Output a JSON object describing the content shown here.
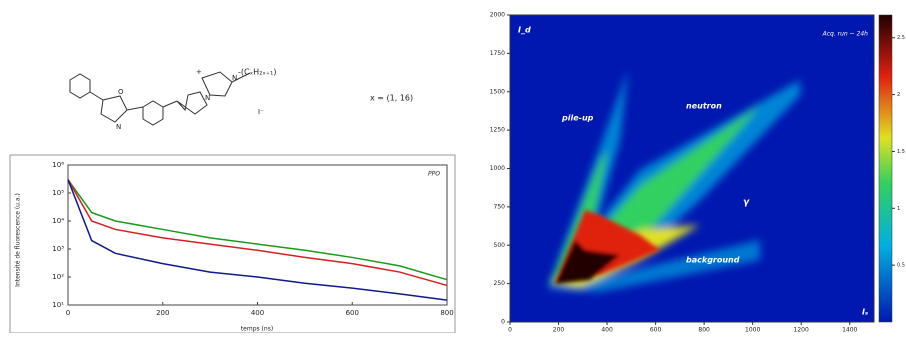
{
  "structure": {
    "labels": [
      "O",
      "N",
      "N",
      "N",
      "+",
      "-(CₓH₂ₓ₊₁)",
      "I⁻"
    ],
    "note": "x = (1, 16)"
  },
  "chart_data": [
    {
      "type": "line",
      "xlabel": "temps (ns)",
      "ylabel": "Intensité de fluorescence (u.a.)",
      "legend_label": "PPO",
      "x": [
        0,
        50,
        100,
        200,
        300,
        400,
        500,
        600,
        700,
        800
      ],
      "series": [
        {
          "color": "#1a9a1a",
          "values": [
            300000,
            20000,
            10000,
            5000,
            2500,
            1500,
            900,
            500,
            250,
            80
          ]
        },
        {
          "color": "#d42020",
          "values": [
            300000,
            10000,
            5000,
            2500,
            1500,
            900,
            500,
            300,
            150,
            50
          ]
        },
        {
          "color": "#101a8a",
          "values": [
            300000,
            2000,
            700,
            300,
            150,
            100,
            60,
            40,
            25,
            15
          ]
        }
      ],
      "xlim": [
        0,
        800
      ],
      "xticks": [
        0,
        200,
        400,
        600,
        800
      ],
      "ylim": [
        10,
        1000000
      ],
      "log_y": true,
      "yticks": [
        {
          "value": 10,
          "label": "10¹"
        },
        {
          "value": 100,
          "label": "10²"
        },
        {
          "value": 1000,
          "label": "10³"
        },
        {
          "value": 10000,
          "label": "10⁴"
        },
        {
          "value": 100000,
          "label": "10⁵"
        },
        {
          "value": 1000000,
          "label": "10⁶"
        }
      ]
    },
    {
      "type": "density",
      "xlabel": "Iₛ",
      "ylabel": "I_d",
      "annotation": "Acq. run ~ 24h",
      "regions": [
        "pile-up",
        "neutron",
        "γ",
        "background"
      ],
      "xlim": [
        0,
        1500
      ],
      "xticks": [
        0,
        200,
        400,
        600,
        800,
        1000,
        1200,
        1400
      ],
      "ylim": [
        0,
        2000
      ],
      "yticks": [
        0,
        250,
        500,
        750,
        1000,
        1250,
        1500,
        1750,
        2000
      ],
      "clim": [
        0,
        2.7
      ],
      "cticks": [
        0.5,
        1,
        1.5,
        2,
        2.5
      ]
    }
  ]
}
